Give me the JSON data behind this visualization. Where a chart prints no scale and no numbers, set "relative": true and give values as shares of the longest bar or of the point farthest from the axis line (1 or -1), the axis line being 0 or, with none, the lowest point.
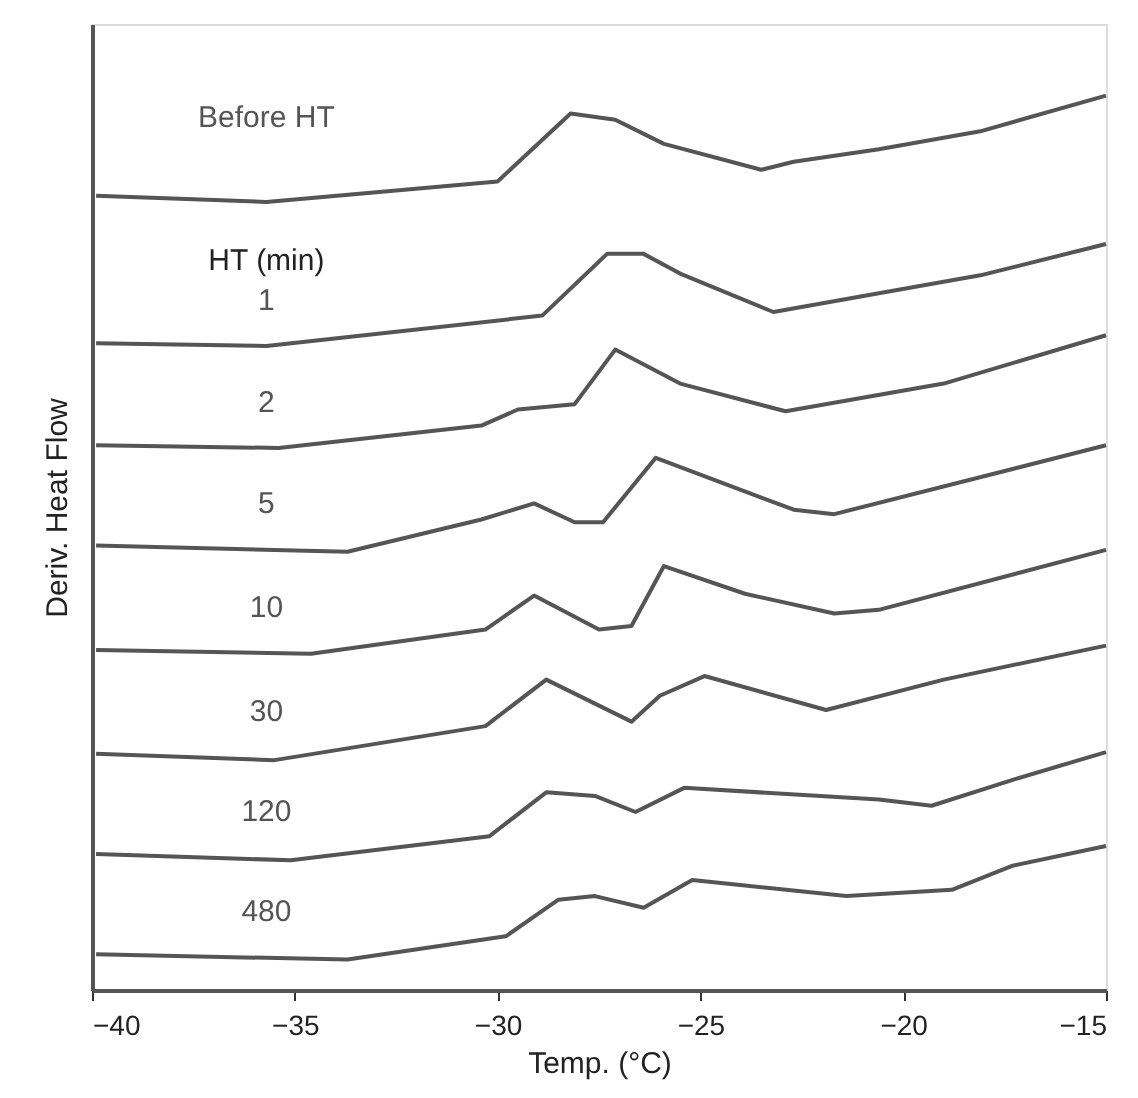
{
  "chart_data": {
    "type": "line",
    "relative": true,
    "xlabel": "Temp. (°C)",
    "ylabel": "Deriv. Heat Flow",
    "xlim": [
      -40,
      -15
    ],
    "xticks": [
      -40,
      -35,
      -30,
      -25,
      -20,
      -15
    ],
    "grid": false,
    "marker": "none",
    "line_style": "solid",
    "annotations": [
      "HT (min)"
    ],
    "series": [
      {
        "name": "Before HT",
        "color": "#555555",
        "x": [
          -39.9,
          -35.7,
          -30.0,
          -28.2,
          -27.1,
          -25.9,
          -23.5,
          -22.7,
          -20.6,
          -18.1,
          -15
        ],
        "values": [
          0.888,
          0.881,
          0.904,
          0.98,
          0.973,
          0.946,
          0.917,
          0.926,
          0.94,
          0.96,
          1.0
        ]
      },
      {
        "name": "1",
        "color": "#555555",
        "x": [
          -39.9,
          -35.7,
          -28.9,
          -27.3,
          -26.4,
          -25.5,
          -23.2,
          -20.6,
          -18.1,
          -15
        ],
        "values": [
          0.723,
          0.72,
          0.754,
          0.823,
          0.823,
          0.801,
          0.758,
          0.779,
          0.799,
          0.834
        ]
      },
      {
        "name": "2",
        "color": "#555555",
        "x": [
          -39.9,
          -35.4,
          -30.4,
          -29.5,
          -28.1,
          -27.1,
          -25.5,
          -22.9,
          -19.0,
          -15
        ],
        "values": [
          0.609,
          0.606,
          0.631,
          0.649,
          0.655,
          0.716,
          0.678,
          0.647,
          0.678,
          0.732
        ]
      },
      {
        "name": "5",
        "color": "#555555",
        "x": [
          -39.9,
          -33.7,
          -30.4,
          -29.1,
          -28.1,
          -27.4,
          -26.1,
          -22.7,
          -21.7,
          -15
        ],
        "values": [
          0.497,
          0.49,
          0.526,
          0.544,
          0.523,
          0.523,
          0.595,
          0.537,
          0.532,
          0.609
        ]
      },
      {
        "name": "10",
        "color": "#555555",
        "x": [
          -39.9,
          -34.6,
          -30.3,
          -29.1,
          -27.5,
          -26.7,
          -25.9,
          -23.9,
          -21.7,
          -20.6,
          -15
        ],
        "values": [
          0.38,
          0.376,
          0.403,
          0.441,
          0.403,
          0.407,
          0.474,
          0.443,
          0.421,
          0.425,
          0.492
        ]
      },
      {
        "name": "30",
        "color": "#555555",
        "x": [
          -39.9,
          -35.5,
          -30.3,
          -28.8,
          -26.7,
          -26.0,
          -24.9,
          -21.9,
          -19.0,
          -15
        ],
        "values": [
          0.264,
          0.257,
          0.295,
          0.347,
          0.3,
          0.329,
          0.351,
          0.313,
          0.347,
          0.385
        ]
      },
      {
        "name": "120",
        "color": "#555555",
        "x": [
          -39.9,
          -35.1,
          -30.2,
          -28.8,
          -27.6,
          -26.6,
          -25.4,
          -20.6,
          -19.3,
          -17.3,
          -15
        ],
        "values": [
          0.152,
          0.145,
          0.172,
          0.221,
          0.217,
          0.199,
          0.226,
          0.213,
          0.206,
          0.235,
          0.266
        ]
      },
      {
        "name": "480",
        "color": "#555555",
        "x": [
          -39.9,
          -33.7,
          -29.8,
          -28.5,
          -27.6,
          -26.4,
          -25.2,
          -21.4,
          -18.8,
          -17.3,
          -15
        ],
        "values": [
          0.04,
          0.034,
          0.06,
          0.101,
          0.105,
          0.092,
          0.123,
          0.105,
          0.112,
          0.139,
          0.161
        ]
      }
    ]
  }
}
